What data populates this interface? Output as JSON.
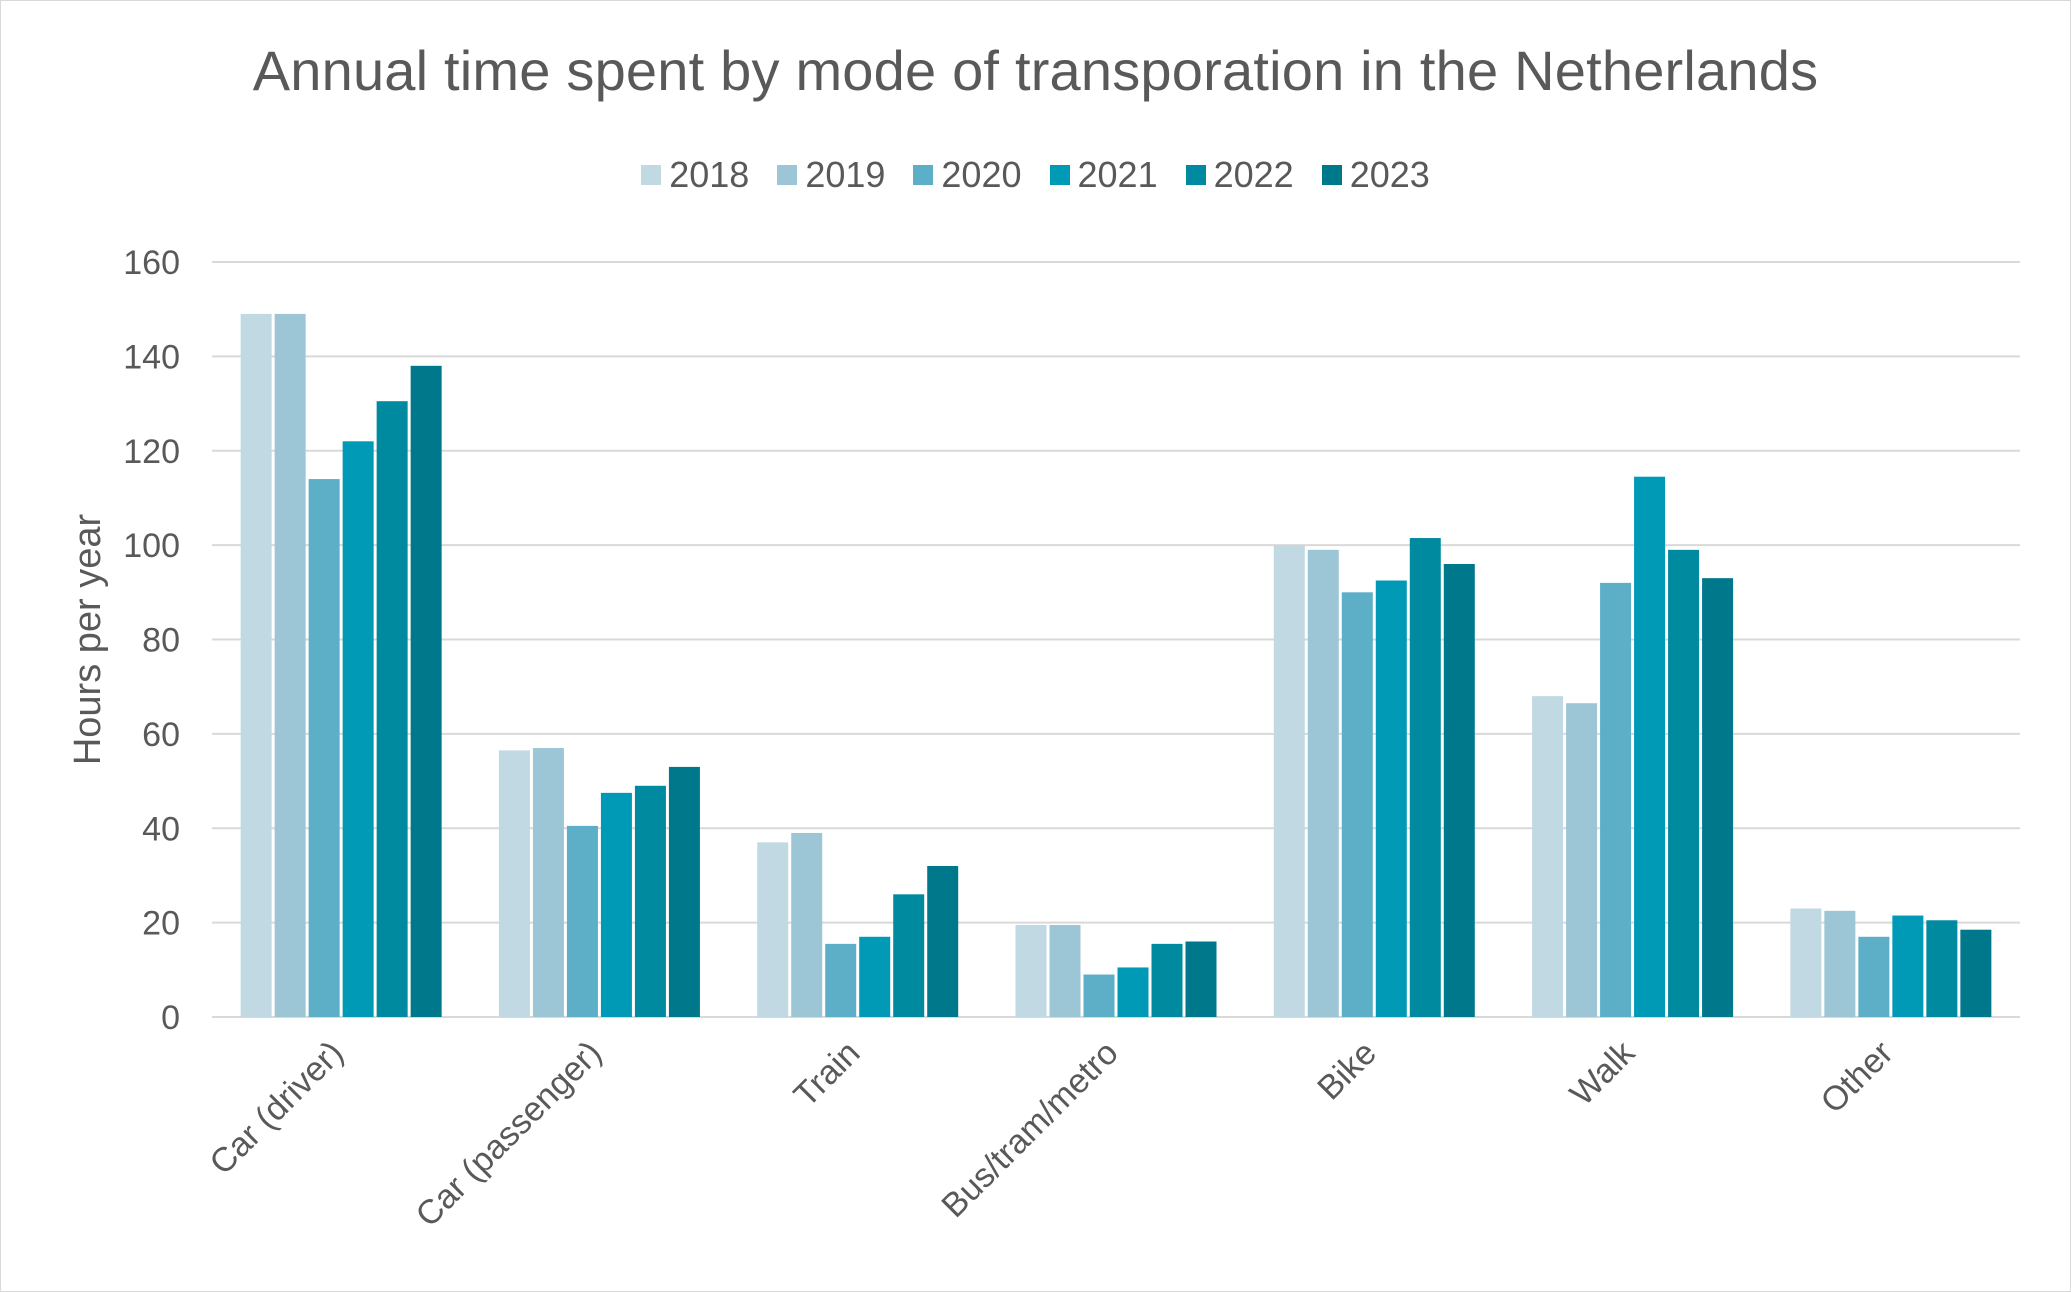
{
  "chart_data": {
    "type": "bar",
    "title": "Annual time spent by mode of transporation in the Netherlands",
    "xlabel": "",
    "ylabel": "Hours per year",
    "ylim": [
      0,
      160
    ],
    "yticks": [
      0,
      20,
      40,
      60,
      80,
      100,
      120,
      140,
      160
    ],
    "grid": true,
    "legend_position": "top-center",
    "categories": [
      "Car (driver)",
      "Car (passenger)",
      "Train",
      "Bus/tram/metro",
      "Bike",
      "Walk",
      "Other"
    ],
    "series": [
      {
        "name": "2018",
        "color": "#c0d9e2",
        "values": [
          149,
          56.5,
          37,
          19.5,
          100,
          68,
          23
        ]
      },
      {
        "name": "2019",
        "color": "#9cc6d6",
        "values": [
          149,
          57,
          39,
          19.5,
          99,
          66.5,
          22.5
        ]
      },
      {
        "name": "2020",
        "color": "#5cafc7",
        "values": [
          114,
          40.5,
          15.5,
          9,
          90,
          92,
          17
        ]
      },
      {
        "name": "2021",
        "color": "#0099b6",
        "values": [
          122,
          47.5,
          17,
          10.5,
          92.5,
          114.5,
          21.5
        ]
      },
      {
        "name": "2022",
        "color": "#008aa0",
        "values": [
          130.5,
          49,
          26,
          15.5,
          101.5,
          99,
          20.5
        ]
      },
      {
        "name": "2023",
        "color": "#00788c",
        "values": [
          138,
          53,
          32,
          16,
          96,
          93,
          18.5
        ]
      }
    ]
  }
}
